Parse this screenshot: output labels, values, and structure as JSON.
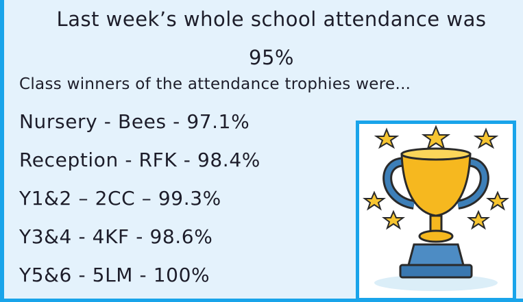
{
  "heading": "Last week’s whole school attendance was 95%",
  "subheading": "Class winners of the attendance trophies were...",
  "winners": [
    "Nursery - Bees - 97.1%",
    "Reception - RFK - 98.4%",
    "Y1&2 – 2CC – 99.3%",
    "Y3&4 - 4KF - 98.6%",
    "Y5&6 - 5LM - 100%"
  ]
}
